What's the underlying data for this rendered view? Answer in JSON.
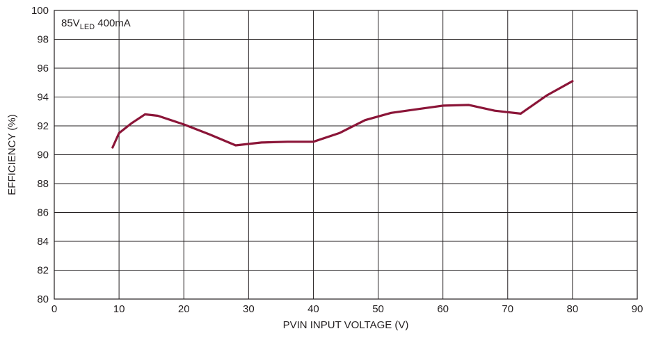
{
  "chart_data": {
    "type": "line",
    "title": "",
    "xlabel": "PVIN INPUT VOLTAGE (V)",
    "ylabel": "EFFICIENCY (%)",
    "xlim": [
      0,
      90
    ],
    "ylim": [
      80,
      100
    ],
    "xticks": [
      "0",
      "10",
      "20",
      "30",
      "40",
      "50",
      "60",
      "70",
      "80",
      "90"
    ],
    "yticks": [
      "80",
      "82",
      "84",
      "86",
      "88",
      "90",
      "92",
      "94",
      "96",
      "98",
      "100"
    ],
    "grid": true,
    "annotation": {
      "main": "85V",
      "subscript": "LED",
      "suffix": " 400mA"
    },
    "series": [
      {
        "color": "#8b1538",
        "x": [
          9,
          10,
          12,
          14,
          16,
          20,
          24,
          28,
          32,
          36,
          40,
          44,
          48,
          52,
          56,
          60,
          64,
          68,
          72,
          76,
          80
        ],
        "y": [
          90.5,
          91.5,
          92.2,
          92.8,
          92.7,
          92.1,
          91.4,
          90.65,
          90.85,
          90.9,
          90.9,
          91.5,
          92.4,
          92.9,
          93.15,
          93.4,
          93.45,
          93.05,
          92.85,
          94.1,
          95.1
        ]
      }
    ]
  }
}
